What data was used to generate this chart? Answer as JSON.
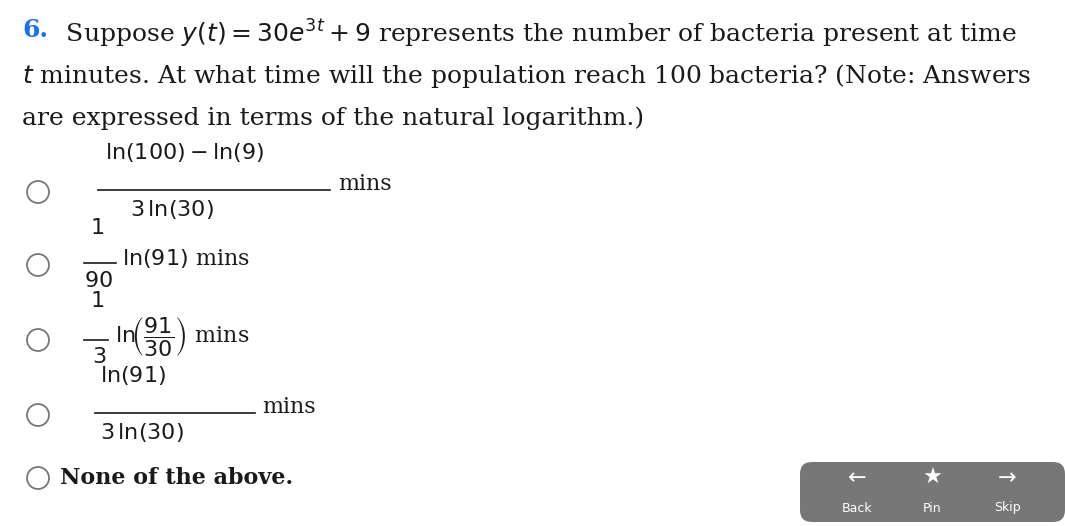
{
  "bg_color": "#ffffff",
  "question_number_color": "#1a6ef7",
  "text_color": "#1a1a1a",
  "circle_color": "#777777",
  "figsize": [
    10.65,
    5.26
  ],
  "dpi": 100,
  "nav_bar_color": "#777777",
  "question_number": "6.",
  "q_line1_num": "6.",
  "q_line1_rest": " Suppose $y(t) = 30e^{3t} + 9$ represents the number of bacteria present at time",
  "q_line2": "$t$ minutes. At what time will the population reach 100 bacteria? (Note: Answers",
  "q_line3": "are expressed in terms of the natural logarithm.)",
  "choice1_num": "$\\mathrm{ln}(100) - \\mathrm{ln}(9)$",
  "choice1_den": "$3\\,\\mathrm{ln}(30)$",
  "choice1_sfx": "mins",
  "choice2_num": "$1$",
  "choice2_den": "$90$",
  "choice2_sfx": "$\\mathrm{ln}(91)$ mins",
  "choice3_num": "$1$",
  "choice3_den": "$3$",
  "choice3_sfx": "$\\mathrm{ln}\\!\\left(\\dfrac{91}{30}\\right)$ mins",
  "choice4_num": "$\\mathrm{ln}(91)$",
  "choice4_den": "$3\\,\\mathrm{ln}(30)$",
  "choice4_sfx": "mins",
  "choice5_txt": "None of the above.",
  "font_q": 18,
  "font_choice": 16
}
